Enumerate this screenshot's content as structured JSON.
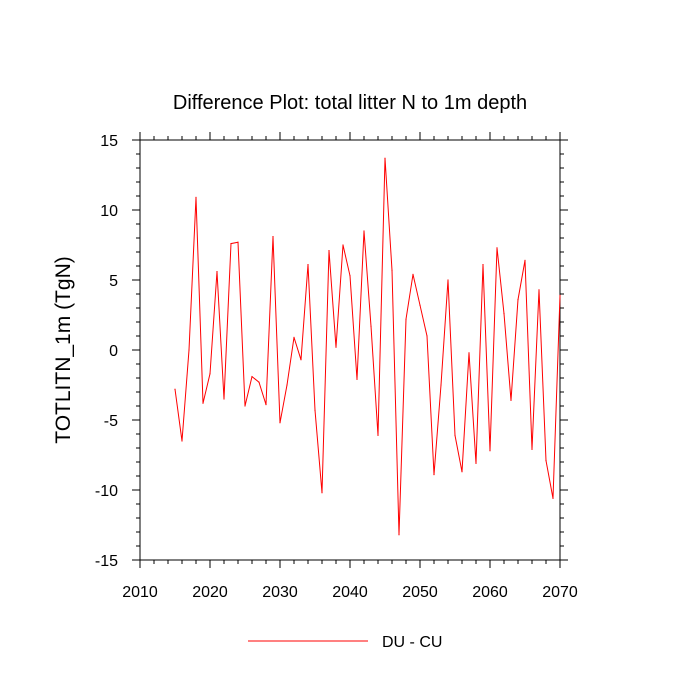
{
  "chart_data": {
    "type": "line",
    "title": "Difference Plot: total litter N to 1m depth",
    "xlabel": "",
    "ylabel": "TOTLITN_1m  (TgN)",
    "xlim": [
      2010,
      2070
    ],
    "ylim": [
      -15,
      15
    ],
    "xticks": [
      2010,
      2020,
      2030,
      2040,
      2050,
      2060,
      2070
    ],
    "yticks": [
      -15,
      -10,
      -5,
      0,
      5,
      10,
      15
    ],
    "xtick_labels": [
      "2010",
      "2020",
      "2030",
      "2040",
      "2050",
      "2060",
      "2070"
    ],
    "ytick_labels": [
      "-15",
      "-10",
      "-5",
      "0",
      "5",
      "10",
      "15"
    ],
    "grid": false,
    "legend_position": "bottom-center",
    "series": [
      {
        "name": "DU - CU",
        "color": "#ff0000",
        "x": [
          2015,
          2016,
          2017,
          2018,
          2019,
          2020,
          2021,
          2022,
          2023,
          2024,
          2025,
          2026,
          2027,
          2028,
          2029,
          2030,
          2031,
          2032,
          2033,
          2034,
          2035,
          2036,
          2037,
          2038,
          2039,
          2040,
          2041,
          2042,
          2043,
          2044,
          2045,
          2046,
          2047,
          2048,
          2049,
          2050,
          2051,
          2052,
          2053,
          2054,
          2055,
          2056,
          2057,
          2058,
          2059,
          2060,
          2061,
          2062,
          2063,
          2064,
          2065,
          2066,
          2067,
          2068,
          2069,
          2070
        ],
        "values": [
          -2.8,
          -6.5,
          0,
          10.9,
          -3.8,
          -1.7,
          5.6,
          -3.5,
          7.6,
          7.7,
          -4,
          -1.9,
          -2.3,
          -3.9,
          8.1,
          -5.2,
          -2.5,
          0.9,
          -0.7,
          6.1,
          -4.3,
          -10.2,
          7.1,
          0.2,
          7.5,
          5.3,
          -2.1,
          8.5,
          1.7,
          -6.1,
          13.7,
          5.7,
          -13.2,
          2.2,
          5.4,
          3.2,
          1,
          -8.9,
          -2.5,
          5,
          -6.1,
          -8.7,
          -0.2,
          -8.1,
          6.1,
          -7.2,
          7.3,
          2.6,
          -3.6,
          3.6,
          6.4,
          -7.1,
          4.3,
          -7.9,
          -10.6,
          3.9
        ]
      }
    ]
  }
}
